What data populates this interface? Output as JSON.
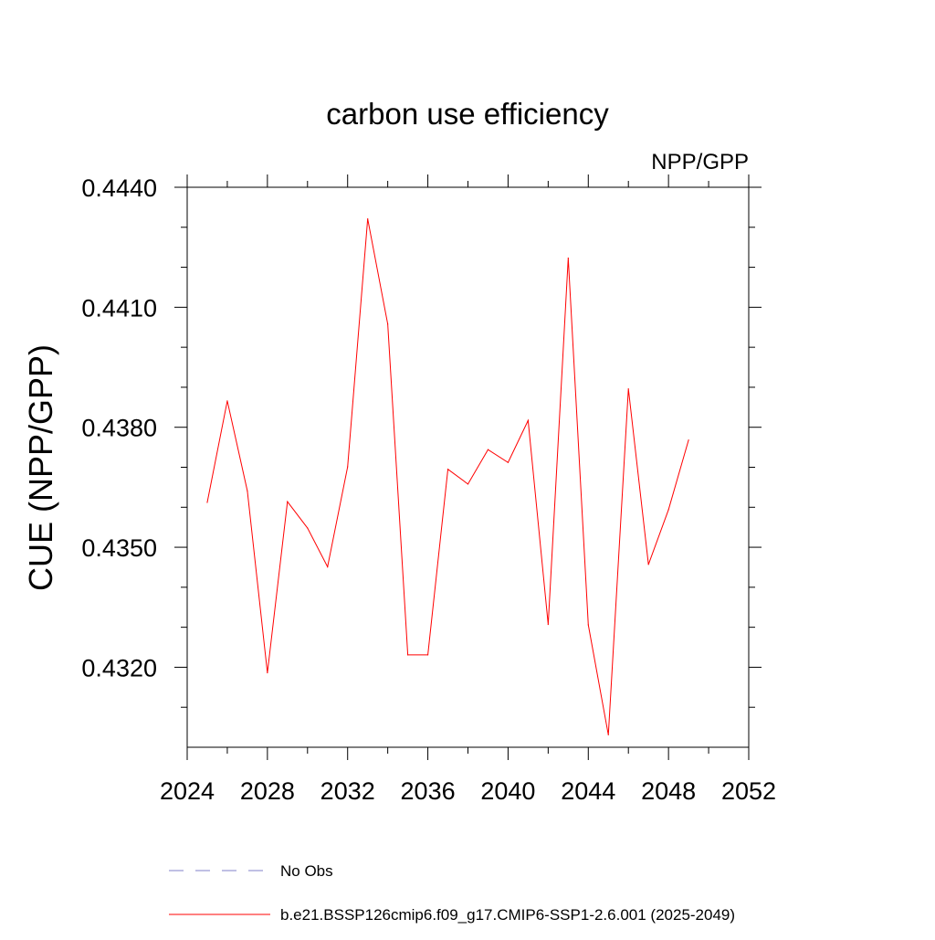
{
  "chart_data": {
    "type": "line",
    "title": "carbon use efficiency",
    "subtitle": "NPP/GPP",
    "ylabel": "CUE  (NPP/GPP)",
    "xlabel": "",
    "xlim": [
      2024,
      2052
    ],
    "ylim": [
      0.43,
      0.444
    ],
    "x_ticks": [
      "2024",
      "2028",
      "2032",
      "2036",
      "2040",
      "2044",
      "2048",
      "2052"
    ],
    "y_ticks": [
      "0.4440",
      "0.4410",
      "0.4380",
      "0.4350",
      "0.4320"
    ],
    "x_tick_values": [
      2024,
      2028,
      2032,
      2036,
      2040,
      2044,
      2048,
      2052
    ],
    "y_tick_values": [
      0.444,
      0.441,
      0.438,
      0.435,
      0.432
    ],
    "grid": false,
    "legend_position": "bottom",
    "series": [
      {
        "name": "b.e21.BSSP126cmip6.f09_g17.CMIP6-SSP1-2.6.001 (2025-2049)",
        "color": "#ff0000",
        "style": "solid",
        "x": [
          2025,
          2026,
          2027,
          2028,
          2029,
          2030,
          2031,
          2032,
          2033,
          2034,
          2035,
          2036,
          2037,
          2038,
          2039,
          2040,
          2041,
          2042,
          2043,
          2044,
          2045,
          2046,
          2047,
          2048,
          2049
        ],
        "values": [
          0.43612,
          0.43866,
          0.43641,
          0.43186,
          0.43614,
          0.43548,
          0.43451,
          0.43701,
          0.44321,
          0.44058,
          0.43231,
          0.43231,
          0.43695,
          0.43658,
          0.43744,
          0.43712,
          0.43817,
          0.43307,
          0.44223,
          0.43306,
          0.43031,
          0.43896,
          0.43457,
          0.43594,
          0.43768
        ]
      },
      {
        "name": "No Obs",
        "color": "#8080c8",
        "style": "dashed",
        "x": [],
        "values": []
      }
    ]
  }
}
